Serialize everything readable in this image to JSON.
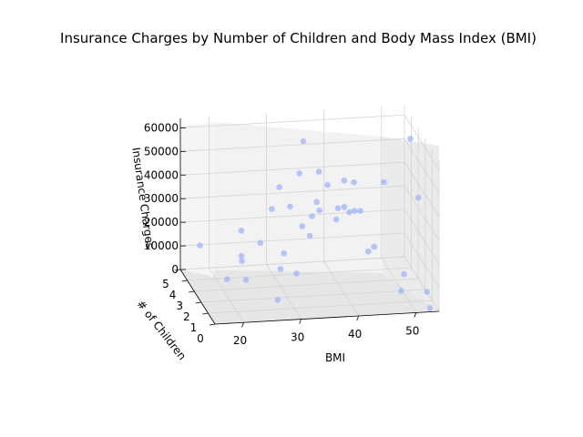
{
  "chart_data": {
    "type": "scatter",
    "title": "Insurance Charges by Number of Children and Body Mass Index (BMI)",
    "xlabel": "BMI",
    "ylabel": "# of Children",
    "zlabel": "Insurance Charges",
    "x_ticks": [
      "20",
      "30",
      "40",
      "50"
    ],
    "y_ticks": [
      "0",
      "1",
      "2",
      "3",
      "4",
      "5"
    ],
    "z_ticks": [
      "0",
      "10000",
      "20000",
      "30000",
      "40000",
      "50000",
      "60000"
    ],
    "xlim": [
      15,
      54
    ],
    "ylim": [
      0,
      5
    ],
    "zlim": [
      0,
      64000
    ],
    "grid": true,
    "point_color": "#a0b4f8",
    "points": [
      {
        "x": 17.2,
        "y": 4,
        "z": 14500
      },
      {
        "x": 24.1,
        "y": 1,
        "z": 28500
      },
      {
        "x": 34.0,
        "y": 3,
        "z": 60900
      },
      {
        "x": 30.9,
        "y": 1,
        "z": 57000
      },
      {
        "x": 35.5,
        "y": 2,
        "z": 52500
      },
      {
        "x": 36.4,
        "y": 0,
        "z": 46100
      },
      {
        "x": 38.2,
        "y": 3,
        "z": 41900
      },
      {
        "x": 40.5,
        "y": 1,
        "z": 39800
      },
      {
        "x": 42.7,
        "y": 2,
        "z": 34900
      },
      {
        "x": 46.8,
        "y": 2,
        "z": 46500
      },
      {
        "x": 52.6,
        "y": 3,
        "z": 59400
      },
      {
        "x": 50.4,
        "y": 0,
        "z": 48700
      },
      {
        "x": 44.0,
        "y": 4,
        "z": 37500
      },
      {
        "x": 27.3,
        "y": 2,
        "z": 37800
      },
      {
        "x": 29.8,
        "y": 3,
        "z": 42100
      },
      {
        "x": 33.1,
        "y": 1,
        "z": 38500
      },
      {
        "x": 31.5,
        "y": 0,
        "z": 35100
      },
      {
        "x": 28.2,
        "y": 1,
        "z": 23500
      },
      {
        "x": 35.1,
        "y": 2,
        "z": 39700
      },
      {
        "x": 37.3,
        "y": 1,
        "z": 36600
      },
      {
        "x": 38.4,
        "y": 0,
        "z": 44200
      },
      {
        "x": 41.1,
        "y": 3,
        "z": 43300
      },
      {
        "x": 26.4,
        "y": 0,
        "z": 21800
      },
      {
        "x": 22.0,
        "y": 2,
        "z": 18600
      },
      {
        "x": 43.9,
        "y": 1,
        "z": 24100
      },
      {
        "x": 47.4,
        "y": 0,
        "z": 9500
      },
      {
        "x": 49.1,
        "y": 1,
        "z": 11800
      },
      {
        "x": 52.4,
        "y": 0,
        "z": 1600
      },
      {
        "x": 53.1,
        "y": 1,
        "z": 3800
      },
      {
        "x": 24.4,
        "y": 4,
        "z": 19800
      },
      {
        "x": 31.7,
        "y": 3,
        "z": 33600
      },
      {
        "x": 39.9,
        "y": 2,
        "z": 36900
      },
      {
        "x": 32.6,
        "y": 2,
        "z": 29700
      },
      {
        "x": 36.8,
        "y": 3,
        "z": 31200
      },
      {
        "x": 45.3,
        "y": 3,
        "z": 12700
      },
      {
        "x": 29.2,
        "y": 0,
        "z": 19400
      },
      {
        "x": 21.6,
        "y": 1,
        "z": 13200
      },
      {
        "x": 19.5,
        "y": 2,
        "z": 9100
      },
      {
        "x": 23.3,
        "y": 3,
        "z": 11700
      },
      {
        "x": 25.9,
        "y": 0,
        "z": 8800
      }
    ]
  }
}
